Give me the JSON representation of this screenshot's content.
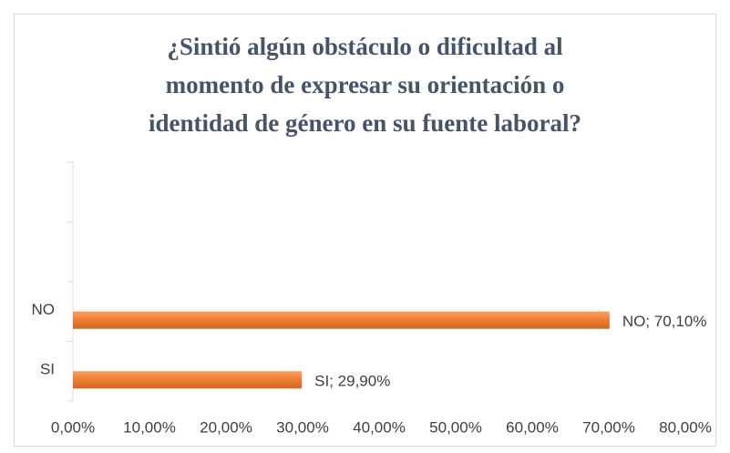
{
  "chart_data": {
    "type": "hbar",
    "title": "¿Sintió algún obstáculo o dificultad al\nmomento de expresar su orientación o\nidentidad de género en su fuente laboral?",
    "categories": [
      "SI",
      "NO",
      null,
      null
    ],
    "values": [
      29.9,
      70.1,
      null,
      null
    ],
    "value_labels": [
      "SI; 29,90%",
      "NO; 70,10%",
      null,
      null
    ],
    "color": "#ed7d31",
    "xlim": [
      0,
      80
    ],
    "xticks": [
      {
        "value": 0,
        "label": "0,00%"
      },
      {
        "value": 10,
        "label": "10,00%"
      },
      {
        "value": 20,
        "label": "20,00%"
      },
      {
        "value": 30,
        "label": "30,00%"
      },
      {
        "value": 40,
        "label": "40,00%"
      },
      {
        "value": 50,
        "label": "50,00%"
      },
      {
        "value": 60,
        "label": "60,00%"
      },
      {
        "value": 70,
        "label": "70,00%"
      },
      {
        "value": 80,
        "label": "80,00%"
      }
    ],
    "grid": false
  }
}
